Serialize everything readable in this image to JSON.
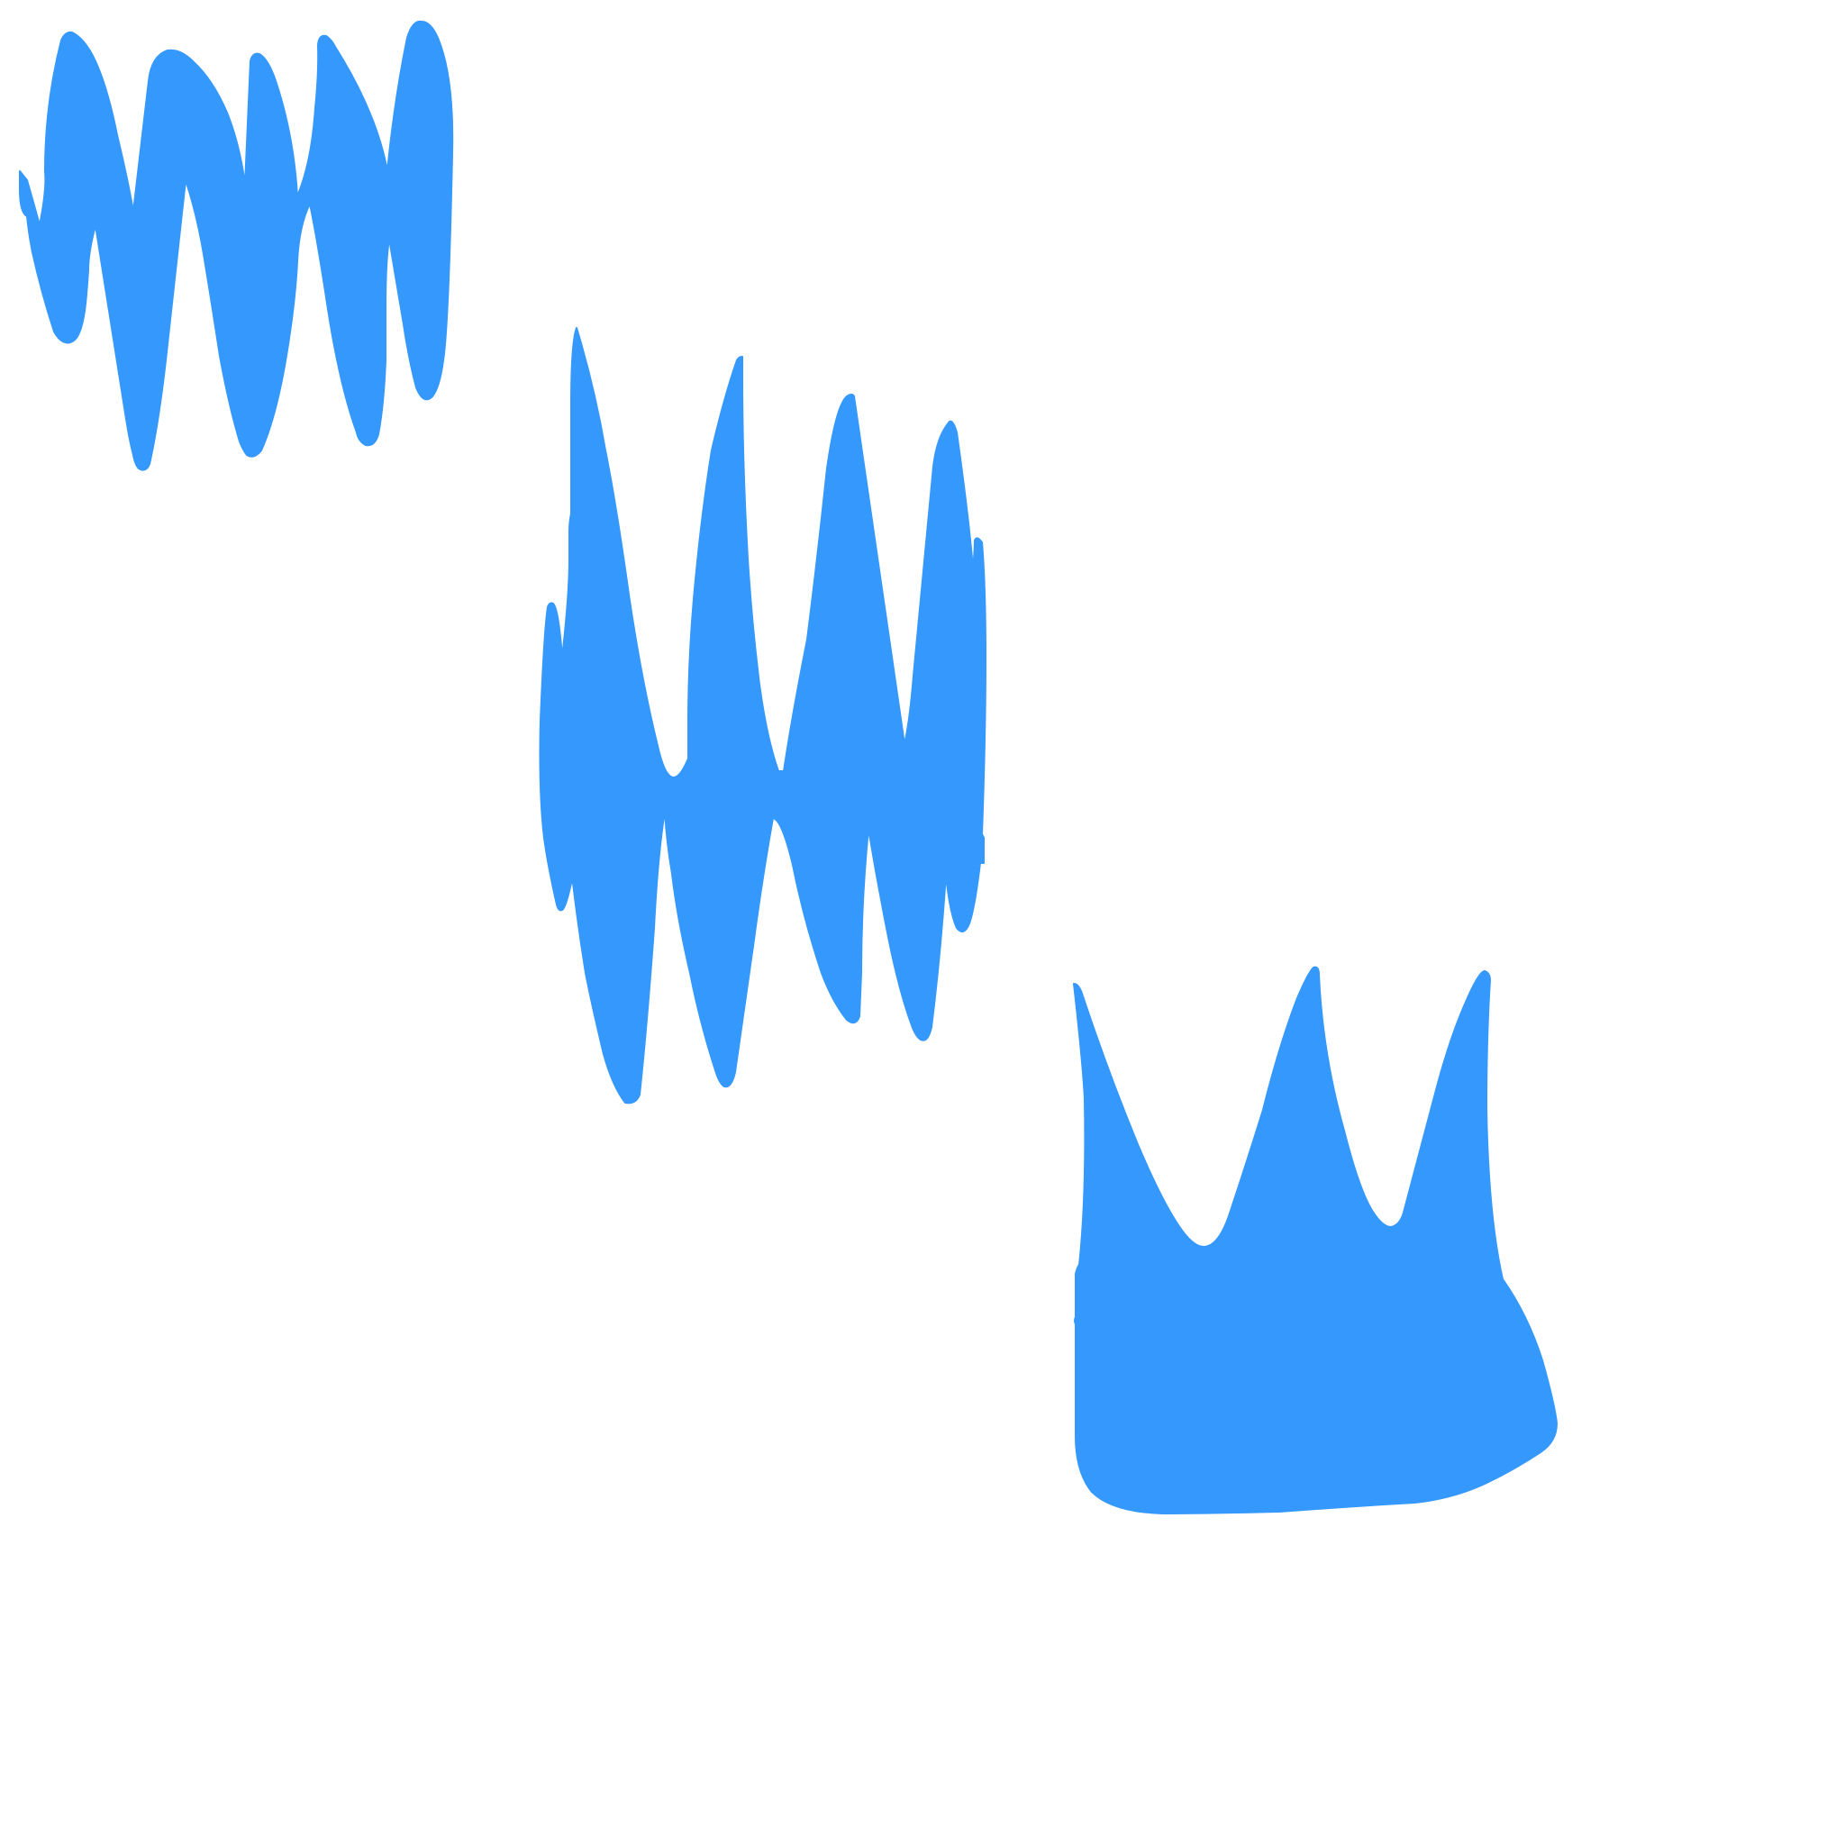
{
  "canvas": {
    "background_color": "#ffffff"
  },
  "strokes": {
    "color": "#3498fd",
    "items": [
      {
        "name": "zigzag-scribble"
      },
      {
        "name": "zigzag-scribble"
      },
      {
        "name": "crown-shaped-scribble"
      }
    ]
  }
}
